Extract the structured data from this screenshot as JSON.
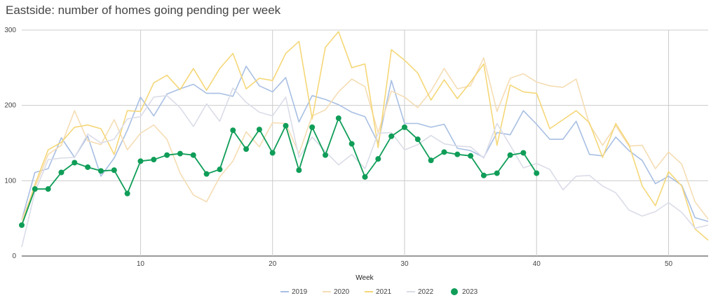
{
  "chart_data": {
    "type": "line",
    "title": "Eastside: number of homes going pending per week",
    "xlabel": "Week",
    "ylabel": "",
    "xlim": [
      1,
      53
    ],
    "ylim": [
      0,
      300
    ],
    "x_ticks": [
      10,
      20,
      30,
      40,
      50
    ],
    "y_ticks": [
      0,
      100,
      200,
      300
    ],
    "grid": true,
    "legend_position": "bottom",
    "series": [
      {
        "name": "2019",
        "color": "#a8bfe3",
        "markers": false,
        "values": [
          48,
          111,
          116,
          157,
          131,
          159,
          106,
          130,
          167,
          211,
          186,
          215,
          222,
          228,
          216,
          216,
          212,
          252,
          226,
          218,
          237,
          178,
          213,
          208,
          201,
          191,
          185,
          150,
          233,
          176,
          176,
          171,
          175,
          143,
          140,
          131,
          164,
          161,
          193,
          175,
          155,
          155,
          179,
          135,
          133,
          158,
          140,
          127,
          96,
          106,
          94,
          51,
          46
        ]
      },
      {
        "name": "2020",
        "color": "#f5ddb4",
        "markers": false,
        "values": [
          48,
          91,
          135,
          147,
          193,
          153,
          148,
          181,
          141,
          163,
          174,
          155,
          110,
          81,
          72,
          105,
          126,
          165,
          145,
          177,
          176,
          136,
          186,
          194,
          218,
          235,
          225,
          164,
          219,
          211,
          197,
          219,
          249,
          222,
          226,
          263,
          192,
          236,
          242,
          231,
          226,
          224,
          235,
          175,
          147,
          173,
          146,
          147,
          116,
          138,
          122,
          72,
          49
        ]
      },
      {
        "name": "2021",
        "color": "#f5d778",
        "markers": false,
        "values": [
          42,
          95,
          141,
          151,
          171,
          174,
          169,
          135,
          193,
          192,
          230,
          240,
          221,
          249,
          220,
          249,
          269,
          222,
          236,
          233,
          269,
          285,
          182,
          277,
          298,
          250,
          255,
          144,
          274,
          260,
          243,
          207,
          234,
          209,
          231,
          255,
          147,
          227,
          218,
          216,
          169,
          181,
          193,
          177,
          131,
          176,
          148,
          93,
          67,
          112,
          93,
          36,
          21
        ]
      },
      {
        "name": "2022",
        "color": "#dadce8",
        "markers": false,
        "values": [
          12,
          85,
          128,
          130,
          131,
          162,
          150,
          155,
          182,
          185,
          211,
          213,
          197,
          172,
          202,
          179,
          223,
          204,
          191,
          186,
          211,
          131,
          158,
          139,
          121,
          135,
          116,
          163,
          164,
          141,
          148,
          160,
          149,
          146,
          145,
          130,
          176,
          147,
          117,
          123,
          115,
          88,
          106,
          107,
          93,
          84,
          61,
          53,
          59,
          71,
          58,
          37,
          41
        ]
      },
      {
        "name": "2023",
        "color": "#0f9d58",
        "markers": true,
        "values": [
          41,
          89,
          89,
          111,
          124,
          118,
          113,
          114,
          83,
          126,
          128,
          134,
          136,
          134,
          109,
          115,
          167,
          142,
          168,
          137,
          173,
          114,
          171,
          134,
          183,
          149,
          105,
          129,
          159,
          171,
          155,
          127,
          138,
          135,
          133,
          107,
          110,
          134,
          137,
          110
        ]
      }
    ]
  }
}
